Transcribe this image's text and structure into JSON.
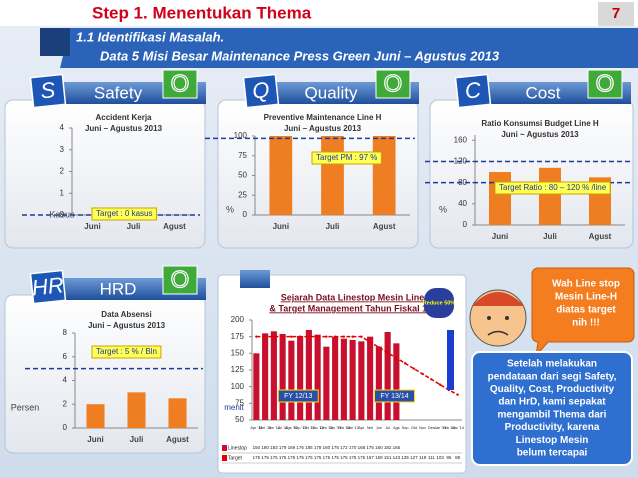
{
  "header": {
    "title": "Step 1. Menentukan Thema",
    "page": "7",
    "subtitle": "1.1 Identifikasi Masalah.",
    "description": "Data 5 Misi Besar Maintenance Press Green Juni – Agustus 2013"
  },
  "panels": [
    {
      "letter": "S",
      "label": "Safety",
      "status": "O"
    },
    {
      "letter": "Q",
      "label": "Quality",
      "status": "O"
    },
    {
      "letter": "C",
      "label": "Cost",
      "status": "O"
    },
    {
      "letter": "HR",
      "label": "HRD",
      "status": "O"
    }
  ],
  "chart_data": [
    {
      "type": "bar",
      "title": [
        "Accident Kerja",
        "Juni – Agustus 2013"
      ],
      "ylabel": "Kasus",
      "categories": [
        "Juni",
        "Juli",
        "Agust"
      ],
      "values": [
        0,
        0,
        0
      ],
      "color": "#ef7d22",
      "ylim": [
        0,
        4
      ],
      "yticks": [
        0,
        1,
        2,
        3,
        4
      ],
      "target_lines": [
        0
      ],
      "target_label": "Target  :  0 kasus",
      "target_color": "#1f3c99"
    },
    {
      "type": "bar",
      "title": [
        "Preventive Maintenance Line H",
        "Juni – Agustus 2013"
      ],
      "ylabel": "%",
      "categories": [
        "Juni",
        "Juli",
        "Agust"
      ],
      "values": [
        100,
        100,
        100
      ],
      "color": "#ef7d22",
      "ylim": [
        0,
        100
      ],
      "yticks": [
        0,
        25,
        50,
        75,
        100
      ],
      "target_lines": [
        97
      ],
      "target_label": "Target PM : 97 %",
      "target_color": "#1f3c99"
    },
    {
      "type": "bar",
      "title": [
        "Ratio Konsumsi Budget Line H",
        "Juni ~ Agustus 2013"
      ],
      "ylabel": "%",
      "categories": [
        "Juni",
        "Juli",
        "Agust"
      ],
      "values": [
        100,
        108,
        90
      ],
      "color": "#ef7d22",
      "ylim": [
        0,
        170
      ],
      "yticks": [
        0,
        40,
        80,
        120,
        160
      ],
      "target_lines": [
        80,
        120
      ],
      "target_label": "Target Ratio : 80 – 120 %  /line",
      "target_color": "#1f3c99"
    },
    {
      "type": "bar",
      "title": [
        "Data Absensi",
        "Juni – Agustus 2013"
      ],
      "ylabel": "Persen",
      "categories": [
        "Juni",
        "Juli",
        "Agust"
      ],
      "values": [
        2,
        3,
        2.5
      ],
      "color": "#ef7d22",
      "ylim": [
        0,
        8
      ],
      "yticks": [
        0,
        2,
        4,
        6,
        8
      ],
      "target_lines": [
        5
      ],
      "target_label": "Target : 5 % / Bln",
      "target_color": "#1f3c99"
    },
    {
      "type": "combo",
      "title": [
        "Sejarah Data Linestop Mesin Line H",
        "& Target Management Tahun Fiskal 13/14"
      ],
      "ylabel": "menit",
      "categories": [
        "Apr '12",
        "Mei '12",
        "Jun '12",
        "Jul '12",
        "Ags '12",
        "Sep '12",
        "Okt '12",
        "Nov '12",
        "Des '12",
        "Jan '13",
        "Feb '13",
        "Mar '13",
        "Apr",
        "Mei",
        "Jun",
        "Jul",
        "Ags",
        "Sep",
        "Okt",
        "Nov",
        "Des",
        "Jan '14",
        "Feb '14",
        "Mar '14"
      ],
      "series": [
        {
          "name": "Linestop",
          "type": "bar",
          "color": "#c8102e",
          "values": [
            150,
            180,
            183,
            179,
            169,
            176,
            185,
            178,
            160,
            175,
            172,
            170,
            168,
            175,
            160,
            182,
            165,
            null,
            null,
            null,
            null,
            null,
            null,
            null
          ]
        },
        {
          "name": "Target",
          "type": "line",
          "color": "#e00000",
          "values": [
            175,
            175,
            175,
            175,
            175,
            175,
            175,
            175,
            175,
            175,
            175,
            175,
            175,
            167,
            159,
            151,
            143,
            135,
            127,
            119,
            111,
            103,
            95,
            88
          ]
        }
      ],
      "ylim": [
        50,
        200
      ],
      "yticks": [
        50,
        75,
        100,
        125,
        150,
        175,
        200
      ],
      "annotations": [
        "FY 12/13",
        "FY 13/14"
      ],
      "badge": "Reduce 50%"
    }
  ],
  "callout": [
    "Wah  Line stop",
    "Mesin Line-H",
    "diatas target",
    "nih !!!"
  ],
  "conclusion": [
    "Setelah melakukan",
    "pendataan dari segi Safety,",
    "Quality, Cost, Productivity",
    "dan HrD, kami sepakat",
    "mengambil Thema dari",
    "Productivity, karena",
    "Linestop Mesin",
    "belum tercapai"
  ]
}
